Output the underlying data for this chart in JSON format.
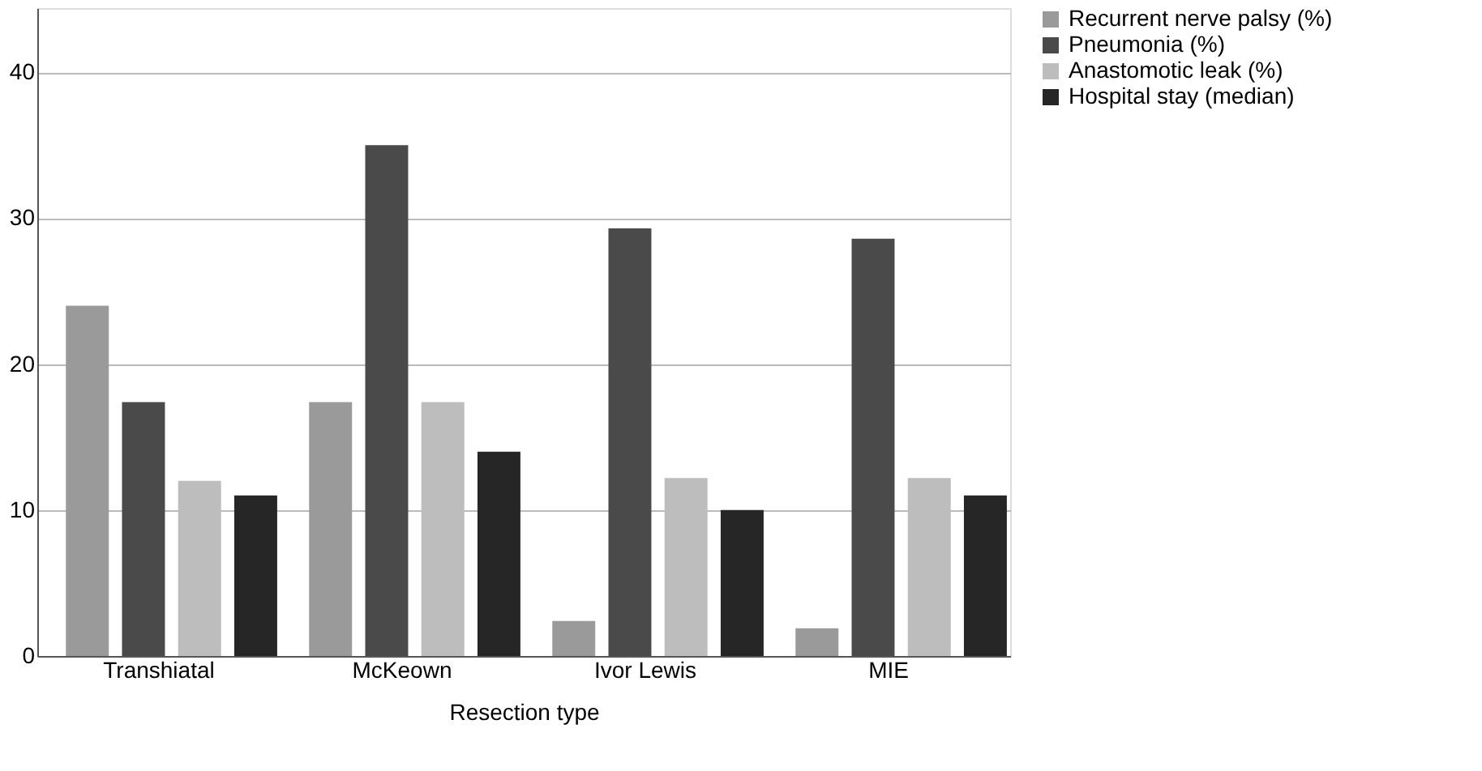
{
  "chart_data": {
    "type": "bar",
    "xlabel": "Resection type",
    "categories": [
      "Transhiatal",
      "McKeown",
      "Ivor Lewis",
      "MIE"
    ],
    "series": [
      {
        "name": "Recurrent nerve palsy (%)",
        "color": "#9a9a9a",
        "values": [
          24,
          17.4,
          2.4,
          1.9
        ]
      },
      {
        "name": "Pneumonia (%)",
        "color": "#4a4a4a",
        "values": [
          17.4,
          35,
          29.3,
          28.6
        ]
      },
      {
        "name": "Anastomotic leak (%)",
        "color": "#bdbdbd",
        "values": [
          12,
          17.4,
          12.2,
          12.2
        ]
      },
      {
        "name": "Hospital stay (median)",
        "color": "#262626",
        "values": [
          11,
          14,
          10,
          11
        ]
      }
    ],
    "ylim": [
      0,
      44.4
    ],
    "yticks": [
      0,
      10,
      20,
      30,
      40
    ],
    "grid": "y",
    "legend": "top right"
  }
}
